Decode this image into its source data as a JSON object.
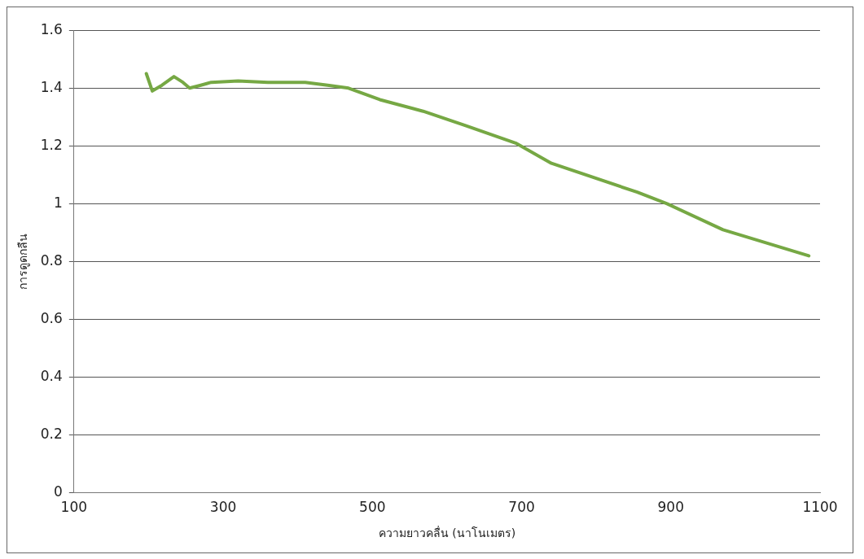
{
  "chart_data": {
    "type": "line",
    "xlabel": "ความยาวคลื่น (นาโนเมตร)",
    "ylabel": "การดูดกลืน",
    "xlim": [
      100,
      1100
    ],
    "xticks": [
      100,
      300,
      500,
      700,
      900,
      1100
    ],
    "ylim": [
      0,
      1.6
    ],
    "yticks": [
      0,
      0.2,
      0.4,
      0.6,
      0.8,
      1,
      1.2,
      1.4,
      1.6
    ],
    "grid": "y",
    "legend": false,
    "marker": "none",
    "line_style": "solid",
    "series": [
      {
        "color": "#76a844",
        "x": [
          197,
          205,
          218,
          234,
          246,
          255,
          270,
          284,
          320,
          360,
          410,
          440,
          468,
          510,
          568,
          625,
          692,
          740,
          855,
          895,
          970,
          1085
        ],
        "values": [
          1.45,
          1.39,
          1.41,
          1.44,
          1.42,
          1.4,
          1.41,
          1.42,
          1.425,
          1.42,
          1.42,
          1.41,
          1.4,
          1.36,
          1.32,
          1.27,
          1.21,
          1.14,
          1.04,
          1.0,
          0.91,
          0.82
        ]
      }
    ]
  }
}
